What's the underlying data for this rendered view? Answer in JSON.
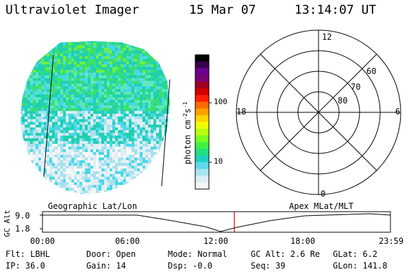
{
  "header": {
    "instrument": "Ultraviolet Imager",
    "date": "15 Mar 07",
    "time": "13:14:07 UT"
  },
  "colorbar": {
    "unit_label": "photon cm",
    "unit_exp1": "-2",
    "unit_s": "s",
    "unit_exp2": "-1",
    "ticks": [
      "100",
      "10"
    ],
    "colors": [
      "#000000",
      "#3a0050",
      "#6a0090",
      "#7a0078",
      "#a00020",
      "#d00000",
      "#ff2000",
      "#ff6a00",
      "#ffa000",
      "#ffd200",
      "#f0ff00",
      "#b8ff10",
      "#7aff20",
      "#40f040",
      "#20e080",
      "#20d0c0",
      "#60d8e8",
      "#a8e4f0",
      "#d8eef4",
      "#f2f6f6"
    ]
  },
  "image": {
    "colors": [
      "#20d0b0",
      "#38e070",
      "#60e8c0",
      "#48d8e8",
      "#a8e0f0",
      "#e0eef2",
      "#f6f8f8",
      "#70f040"
    ]
  },
  "polar_grid": {
    "mlt_labels": {
      "top": "12",
      "left": "18",
      "right": "6",
      "bottom": "0"
    },
    "lat_labels": [
      "60",
      "70",
      "80"
    ]
  },
  "timeline": {
    "axis_label": "GC Alt",
    "ymax": "9.0",
    "ymin": "1.8",
    "left_label": "Geographic Lat/Lon",
    "right_label": "Apex MLat/MLT",
    "time_ticks": [
      "00:00",
      "06:00",
      "12:00",
      "18:00",
      "23:59"
    ],
    "current_time_hours": 13.235,
    "cursor_color": "#cc0000"
  },
  "info": {
    "flt": "Flt: LBHL",
    "ip": "IP: 36.0",
    "door": "Door: Open",
    "gain": "Gain: 14",
    "mode": "Mode: Normal",
    "dsp": "Dsp:   -0.0",
    "gcalt": "GC Alt: 2.6 Re",
    "seq": "Seq: 39",
    "glat": "GLat:   6.2",
    "glon": "GLon: 141.8"
  }
}
